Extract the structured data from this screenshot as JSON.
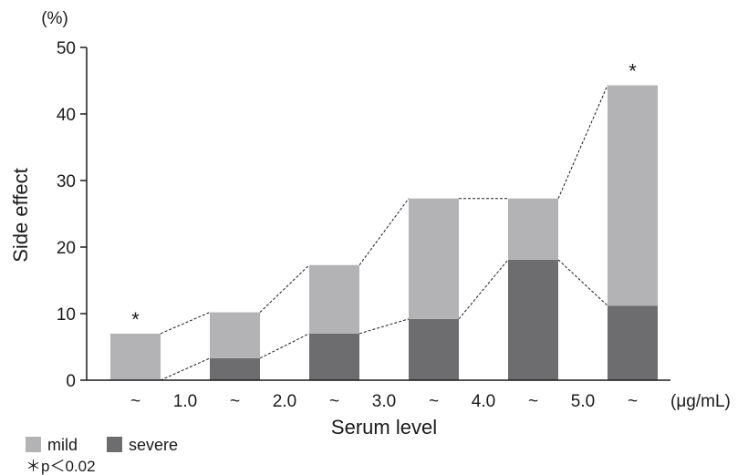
{
  "chart_data": {
    "type": "bar",
    "stacked": true,
    "categories": [
      "~",
      "~",
      "~",
      "~",
      "~",
      "~"
    ],
    "x_boundary_labels": [
      "1.0",
      "2.0",
      "3.0",
      "4.0",
      "5.0"
    ],
    "x_unit": "(μg/mL)",
    "series": [
      {
        "name": "severe",
        "values": [
          0,
          3.3,
          7,
          9.2,
          18.1,
          11.2
        ],
        "color": "#6d6d6f"
      },
      {
        "name": "mild",
        "values": [
          7,
          6.9,
          10.3,
          18.1,
          9.2,
          33.1
        ],
        "color": "#b3b3b5"
      }
    ],
    "totals": [
      7,
      10.2,
      17.3,
      27.3,
      27.3,
      44.3
    ],
    "significance_markers": [
      "*",
      "",
      "",
      "",
      "",
      "*"
    ],
    "dashed_connectors": true,
    "ylim": [
      0,
      50
    ],
    "yticks": [
      0,
      10,
      20,
      30,
      40,
      50
    ],
    "y_unit": "(%)",
    "ylabel": "Side effect",
    "xlabel": "Serum level",
    "legend": {
      "position": "bottom-left",
      "items": [
        "mild",
        "severe"
      ]
    },
    "footnote": "＊p＜0.02",
    "grid": false
  }
}
